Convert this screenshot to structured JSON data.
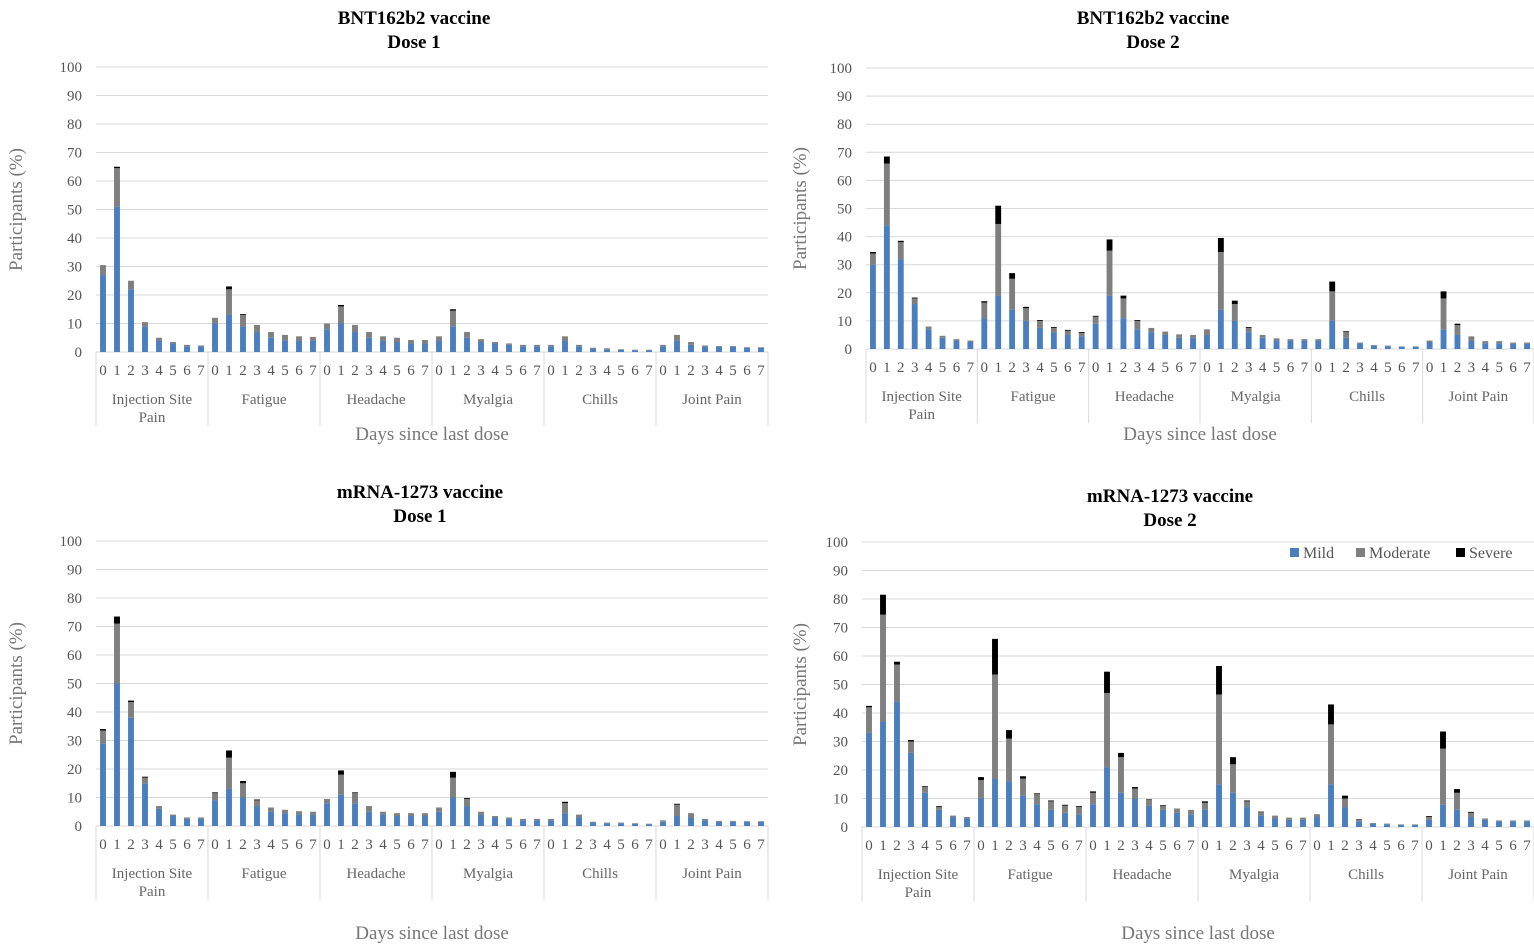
{
  "colors": {
    "mild": "#4a7ebf",
    "moderate": "#7f7f7f",
    "severe": "#000000",
    "grid": "#d9d9d9"
  },
  "chart_data": [
    {
      "type": "bar",
      "stacked": true,
      "title": "BNT162b2 vaccine",
      "subtitle": "Dose 1",
      "ylabel": "Participants (%)",
      "xlabel": "Days since last dose",
      "ylim": [
        0,
        100
      ],
      "yticks": [
        0,
        10,
        20,
        30,
        40,
        50,
        60,
        70,
        80,
        90,
        100
      ],
      "grid": true,
      "legend": null,
      "days": [
        "0",
        "1",
        "2",
        "3",
        "4",
        "5",
        "6",
        "7"
      ],
      "groups": [
        {
          "name": "Injection Site Pain",
          "label_lines": [
            "Injection Site",
            "Pain"
          ],
          "mild": [
            27,
            51,
            22,
            9,
            4,
            3,
            2,
            2
          ],
          "moderate": [
            3.5,
            13.5,
            3,
            1.5,
            1,
            0.5,
            0.5,
            0.3
          ],
          "severe": [
            0,
            0.5,
            0,
            0,
            0,
            0,
            0,
            0
          ]
        },
        {
          "name": "Fatigue",
          "label_lines": [
            "Fatigue"
          ],
          "mild": [
            10,
            13,
            9,
            7,
            5,
            4,
            4,
            4
          ],
          "moderate": [
            2,
            9,
            4,
            2.5,
            2,
            2,
            1.5,
            1.3
          ],
          "severe": [
            0,
            1,
            0.3,
            0,
            0,
            0,
            0,
            0
          ]
        },
        {
          "name": "Headache",
          "label_lines": [
            "Headache"
          ],
          "mild": [
            8,
            10,
            7,
            5,
            4,
            3.5,
            3,
            3
          ],
          "moderate": [
            2,
            6,
            2.5,
            2,
            1.5,
            1.5,
            1.2,
            1.2
          ],
          "severe": [
            0,
            0.5,
            0,
            0,
            0,
            0,
            0,
            0
          ]
        },
        {
          "name": "Myalgia",
          "label_lines": [
            "Myalgia"
          ],
          "mild": [
            4,
            9,
            5,
            3.5,
            3,
            2.5,
            2,
            2
          ],
          "moderate": [
            1.5,
            5.5,
            2,
            1,
            0.5,
            0.5,
            0.5,
            0.5
          ],
          "severe": [
            0,
            0.5,
            0,
            0,
            0,
            0,
            0,
            0
          ]
        },
        {
          "name": "Chills",
          "label_lines": [
            "Chills"
          ],
          "mild": [
            2,
            4,
            2,
            1.2,
            1,
            0.8,
            0.6,
            0.6
          ],
          "moderate": [
            0.5,
            1.5,
            0.5,
            0.3,
            0.3,
            0.2,
            0.2,
            0.2
          ],
          "severe": [
            0,
            0,
            0,
            0,
            0,
            0,
            0,
            0
          ]
        },
        {
          "name": "Joint Pain",
          "label_lines": [
            "Joint Pain"
          ],
          "mild": [
            2,
            4,
            2.5,
            2,
            1.8,
            1.8,
            1.5,
            1.5
          ],
          "moderate": [
            0.5,
            2,
            1,
            0.3,
            0.3,
            0.3,
            0.2,
            0.2
          ],
          "severe": [
            0,
            0,
            0,
            0,
            0,
            0,
            0,
            0
          ]
        }
      ]
    },
    {
      "type": "bar",
      "stacked": true,
      "title": "BNT162b2 vaccine",
      "subtitle": "Dose 2",
      "ylabel": "Participants (%)",
      "xlabel": "Days since last dose",
      "ylim": [
        0,
        100
      ],
      "yticks": [
        0,
        10,
        20,
        30,
        40,
        50,
        60,
        70,
        80,
        90,
        100
      ],
      "grid": true,
      "legend": null,
      "days": [
        "0",
        "1",
        "2",
        "3",
        "4",
        "5",
        "6",
        "7"
      ],
      "groups": [
        {
          "name": "Injection Site Pain",
          "label_lines": [
            "Injection Site",
            "Pain"
          ],
          "mild": [
            30,
            44,
            32,
            16,
            7,
            4,
            3,
            2.5
          ],
          "moderate": [
            4,
            22,
            6,
            2,
            1,
            0.7,
            0.5,
            0.5
          ],
          "severe": [
            0.5,
            2.5,
            0.5,
            0.3,
            0,
            0,
            0,
            0
          ]
        },
        {
          "name": "Fatigue",
          "label_lines": [
            "Fatigue"
          ],
          "mild": [
            11,
            19,
            14,
            10,
            7.5,
            6,
            5,
            4.5
          ],
          "moderate": [
            5.5,
            25.5,
            11,
            4.5,
            2.5,
            1.5,
            1.5,
            1.2
          ],
          "severe": [
            0.5,
            6.5,
            2,
            0.5,
            0.3,
            0.3,
            0.3,
            0.3
          ]
        },
        {
          "name": "Headache",
          "label_lines": [
            "Headache"
          ],
          "mild": [
            9,
            19,
            11,
            7,
            6,
            5,
            4,
            4
          ],
          "moderate": [
            2.5,
            16,
            7,
            3,
            1.5,
            1.2,
            1.2,
            1
          ],
          "severe": [
            0.3,
            4,
            1,
            0.3,
            0,
            0,
            0,
            0
          ]
        },
        {
          "name": "Myalgia",
          "label_lines": [
            "Myalgia"
          ],
          "mild": [
            5,
            14,
            10,
            6,
            4,
            3,
            3,
            3
          ],
          "moderate": [
            2,
            20.5,
            6,
            1.5,
            1,
            0.8,
            0.5,
            0.5
          ],
          "severe": [
            0,
            5,
            1.2,
            0.3,
            0,
            0,
            0,
            0
          ]
        },
        {
          "name": "Chills",
          "label_lines": [
            "Chills"
          ],
          "mild": [
            3,
            10,
            4,
            2,
            1.2,
            1,
            0.8,
            0.8
          ],
          "moderate": [
            0.5,
            10.5,
            2,
            0.3,
            0.2,
            0.2,
            0.1,
            0.1
          ],
          "severe": [
            0,
            3.5,
            0.3,
            0,
            0,
            0,
            0,
            0
          ]
        },
        {
          "name": "Joint Pain",
          "label_lines": [
            "Joint Pain"
          ],
          "mild": [
            2.5,
            7,
            5,
            3,
            2,
            2,
            1.8,
            1.8
          ],
          "moderate": [
            0.5,
            11,
            3.5,
            1.5,
            0.8,
            0.8,
            0.5,
            0.5
          ],
          "severe": [
            0,
            2.5,
            0.5,
            0,
            0,
            0,
            0,
            0
          ]
        }
      ]
    },
    {
      "type": "bar",
      "stacked": true,
      "title": "mRNA-1273 vaccine",
      "subtitle": "Dose 1",
      "ylabel": "Participants (%)",
      "xlabel": "Days since last dose",
      "ylim": [
        0,
        100
      ],
      "yticks": [
        0,
        10,
        20,
        30,
        40,
        50,
        60,
        70,
        80,
        90,
        100
      ],
      "grid": true,
      "legend": null,
      "days": [
        "0",
        "1",
        "2",
        "3",
        "4",
        "5",
        "6",
        "7"
      ],
      "groups": [
        {
          "name": "Injection Site Pain",
          "label_lines": [
            "Injection Site",
            "Pain"
          ],
          "mild": [
            29,
            50,
            38,
            15,
            6,
            3.5,
            2.5,
            2.5
          ],
          "moderate": [
            4.5,
            21,
            5.5,
            2,
            1,
            0.5,
            0.5,
            0.5
          ],
          "severe": [
            0.5,
            2.5,
            0.5,
            0.3,
            0,
            0,
            0,
            0
          ]
        },
        {
          "name": "Fatigue",
          "label_lines": [
            "Fatigue"
          ],
          "mild": [
            9,
            13,
            10,
            7,
            5,
            4.5,
            4,
            4
          ],
          "moderate": [
            2.5,
            11,
            5,
            2,
            1.5,
            1.2,
            1.2,
            1
          ],
          "severe": [
            0.3,
            2.5,
            0.8,
            0.3,
            0,
            0,
            0,
            0
          ]
        },
        {
          "name": "Headache",
          "label_lines": [
            "Headache"
          ],
          "mild": [
            8,
            11,
            8,
            5,
            4,
            3.5,
            3.5,
            3.5
          ],
          "moderate": [
            1.5,
            7,
            3.5,
            2,
            1,
            1,
            1,
            1
          ],
          "severe": [
            0,
            1.5,
            0.3,
            0,
            0,
            0,
            0,
            0
          ]
        },
        {
          "name": "Myalgia",
          "label_lines": [
            "Myalgia"
          ],
          "mild": [
            5,
            10,
            7,
            4,
            3,
            2.5,
            2,
            2
          ],
          "moderate": [
            1.5,
            7,
            2.5,
            1,
            0.5,
            0.5,
            0.5,
            0.5
          ],
          "severe": [
            0,
            2,
            0.3,
            0,
            0,
            0,
            0,
            0
          ]
        },
        {
          "name": "Chills",
          "label_lines": [
            "Chills"
          ],
          "mild": [
            2,
            4.5,
            3,
            1.2,
            1,
            1,
            0.8,
            0.6
          ],
          "moderate": [
            0.5,
            3.5,
            1,
            0.3,
            0.2,
            0.2,
            0.2,
            0.2
          ],
          "severe": [
            0,
            0.5,
            0,
            0,
            0,
            0,
            0,
            0
          ]
        },
        {
          "name": "Joint Pain",
          "label_lines": [
            "Joint Pain"
          ],
          "mild": [
            1.5,
            3.5,
            3,
            2,
            1.5,
            1.5,
            1.5,
            1.5
          ],
          "moderate": [
            0.5,
            4,
            1.5,
            0.5,
            0.3,
            0.3,
            0.2,
            0.2
          ],
          "severe": [
            0,
            0.3,
            0,
            0,
            0,
            0,
            0,
            0
          ]
        }
      ]
    },
    {
      "type": "bar",
      "stacked": true,
      "title": "mRNA-1273 vaccine",
      "subtitle": "Dose 2",
      "ylabel": "Participants (%)",
      "xlabel": "Days since last dose",
      "ylim": [
        0,
        100
      ],
      "yticks": [
        0,
        10,
        20,
        30,
        40,
        50,
        60,
        70,
        80,
        90,
        100
      ],
      "grid": true,
      "legend": "top-right",
      "legend_entries": [
        "Mild",
        "Moderate",
        "Severe"
      ],
      "days": [
        "0",
        "1",
        "2",
        "3",
        "4",
        "5",
        "6",
        "7"
      ],
      "groups": [
        {
          "name": "Injection Site Pain",
          "label_lines": [
            "Injection Site",
            "Pain"
          ],
          "mild": [
            33,
            37,
            44,
            26,
            12,
            6,
            3.5,
            3
          ],
          "moderate": [
            9,
            37.5,
            13,
            4,
            2,
            1,
            0.5,
            0.5
          ],
          "severe": [
            0.5,
            7,
            1,
            0.5,
            0.3,
            0.3,
            0,
            0
          ]
        },
        {
          "name": "Fatigue",
          "label_lines": [
            "Fatigue"
          ],
          "mild": [
            10,
            17,
            16,
            11,
            8,
            6,
            5,
            4.5
          ],
          "moderate": [
            6.5,
            36.5,
            15,
            6,
            3.5,
            3,
            2.5,
            2.5
          ],
          "severe": [
            1,
            12.5,
            3,
            0.8,
            0.3,
            0.3,
            0.3,
            0.3
          ]
        },
        {
          "name": "Headache",
          "label_lines": [
            "Headache"
          ],
          "mild": [
            8,
            21,
            12,
            10,
            7.5,
            6,
            5,
            4.5
          ],
          "moderate": [
            4,
            26,
            12.5,
            3.5,
            2,
            1.5,
            1.5,
            1.5
          ],
          "severe": [
            0.5,
            7.5,
            1.5,
            0.5,
            0.2,
            0.2,
            0,
            0
          ]
        },
        {
          "name": "Myalgia",
          "label_lines": [
            "Myalgia"
          ],
          "mild": [
            6,
            15,
            12,
            7,
            4,
            3,
            2.5,
            2.5
          ],
          "moderate": [
            2.5,
            31.5,
            10,
            2,
            1.2,
            1,
            0.8,
            0.8
          ],
          "severe": [
            0.5,
            10,
            2.5,
            0.3,
            0.2,
            0,
            0,
            0
          ]
        },
        {
          "name": "Chills",
          "label_lines": [
            "Chills"
          ],
          "mild": [
            3.5,
            15,
            7,
            2,
            1.2,
            1,
            0.8,
            0.8
          ],
          "moderate": [
            1,
            21,
            3,
            0.5,
            0.2,
            0.2,
            0.1,
            0.1
          ],
          "severe": [
            0,
            7,
            1,
            0.2,
            0,
            0,
            0,
            0
          ]
        },
        {
          "name": "Joint Pain",
          "label_lines": [
            "Joint Pain"
          ],
          "mild": [
            2.5,
            8,
            6,
            3.5,
            2.5,
            2,
            2,
            2
          ],
          "moderate": [
            1,
            19.5,
            6,
            1.5,
            0.5,
            0.3,
            0.3,
            0.3
          ],
          "severe": [
            0.3,
            6,
            1.3,
            0.3,
            0,
            0,
            0,
            0
          ]
        }
      ]
    }
  ]
}
